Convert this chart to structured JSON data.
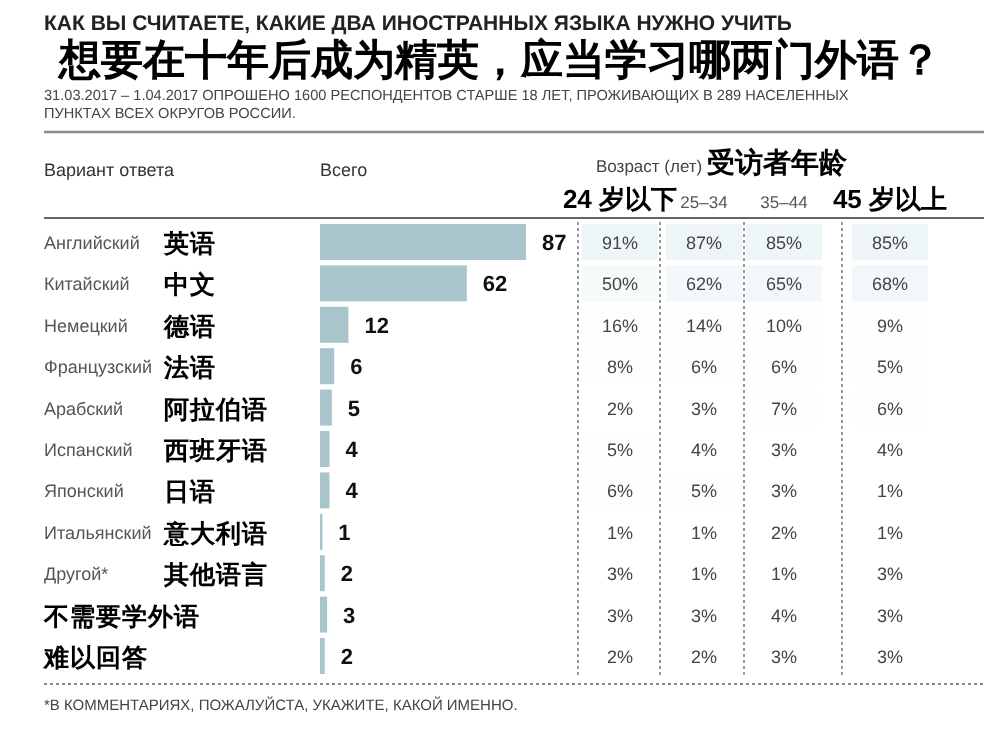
{
  "chart_data": [
    {
      "type": "bar",
      "orientation": "horizontal",
      "data_labels": true,
      "title": "想要在十年后成为精英，应当学习哪两门外语？",
      "subtitle": "КАК ВЫ СЧИТАЕТЕ, КАКИЕ ДВА ИНОСТРАННЫХ ЯЗЫКА НУЖНО УЧИТЬ",
      "ylabel": "Вариант ответа",
      "xlabel": "Всего",
      "categories": [
        "Английский 英语",
        "Китайский 中文",
        "Немецкий 德语",
        "Французский 法语",
        "Арабский 阿拉伯语",
        "Испанский 西班牙语",
        "Японский 日语",
        "Итальянский 意大利语",
        "Другой* 其他语言",
        "不需要学外语",
        "难以回答"
      ],
      "values": [
        87,
        62,
        12,
        6,
        5,
        4,
        4,
        1,
        2,
        3,
        2
      ],
      "color": "#a9c4cb",
      "annotations": [
        "31.03.2017 – 1.04.2017 ОПРОШЕНО 1600 РЕСПОНДЕНТОВ СТАРШЕ 18 ЛЕТ, ПРОЖИВАЮЩИХ В 289 НАСЕЛЕННЫХ ПУНКТАХ ВСЕХ ОКРУГОВ РОССИИ.",
        "*В КОММЕНТАРИЯХ, ПОЖАЛУЙСТА, УКАЖИТЕ, КАКОЙ ИМЕННО."
      ]
    },
    {
      "type": "heatmap",
      "title": "Возраст (лет) 受访者年龄",
      "categories": [
        "24 岁以下",
        "25–34",
        "35–44",
        "45 岁以上"
      ],
      "y_categories": [
        null,
        null,
        null,
        null,
        null,
        null,
        null,
        null,
        null,
        null,
        null
      ],
      "cells": [
        [
          91,
          87,
          85,
          85
        ],
        [
          50,
          62,
          65,
          68
        ],
        [
          16,
          14,
          10,
          9
        ],
        [
          8,
          6,
          6,
          5
        ],
        [
          2,
          3,
          7,
          6
        ],
        [
          5,
          4,
          3,
          4
        ],
        [
          6,
          5,
          3,
          1
        ],
        [
          1,
          1,
          2,
          1
        ],
        [
          3,
          1,
          1,
          3
        ],
        [
          3,
          3,
          4,
          3
        ],
        [
          2,
          2,
          3,
          3
        ]
      ],
      "cell_labels": [
        [
          "91%",
          "87%",
          "85%",
          "85%"
        ],
        [
          "50%",
          "62%",
          "65%",
          "68%"
        ],
        [
          "16%",
          "14%",
          "10%",
          "9%"
        ],
        [
          "8%",
          "6%",
          "6%",
          "5%"
        ],
        [
          "2%",
          "3%",
          "7%",
          "6%"
        ],
        [
          "5%",
          "4%",
          "3%",
          "4%"
        ],
        [
          "6%",
          "5%",
          "3%",
          "1%"
        ],
        [
          "1%",
          "1%",
          "2%",
          "1%"
        ],
        [
          "3%",
          "1%",
          "1%",
          "3%"
        ],
        [
          "3%",
          "3%",
          "4%",
          "3%"
        ],
        [
          "2%",
          "2%",
          "3%",
          "3%"
        ]
      ]
    }
  ]
}
